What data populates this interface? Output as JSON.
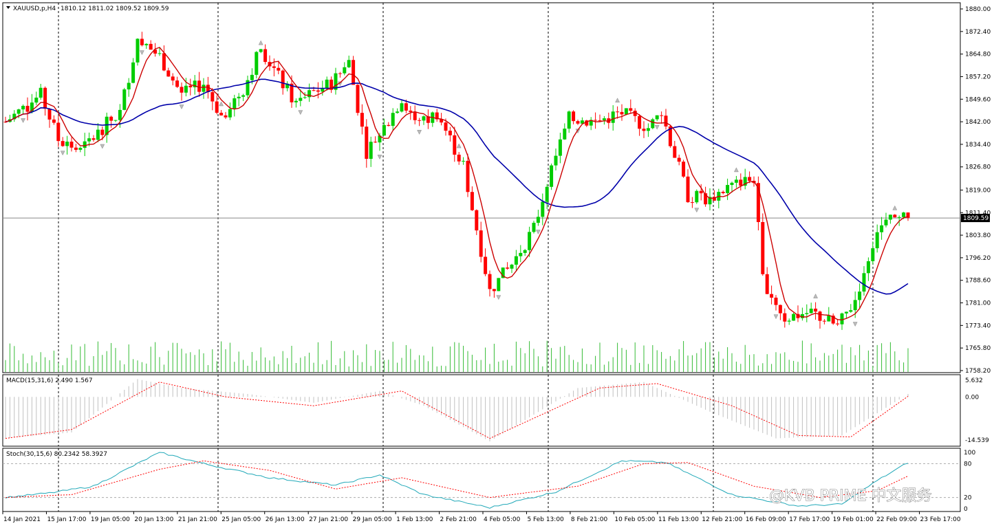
{
  "header": {
    "symbol": "XAUUSD,p,H4",
    "ohlc": "1810.12 1811.02 1809.52 1809.59"
  },
  "current_price_label": "1809.59",
  "macd_header": "MACD(15,31,6) 2.490 1.567",
  "stoch_header": "Stoch(30,15,6) 80.2342 58.3927",
  "watermark": "@KVB PRIME 中文服务",
  "colors": {
    "bull": "#00cc00",
    "bear": "#ff0000",
    "ma_fast": "#cc0000",
    "ma_slow": "#0000aa",
    "volume": "#33bb33",
    "macd_hist": "#c0c0c0",
    "macd_signal": "#ff0000",
    "stoch_main": "#20a8b8",
    "stoch_signal": "#ff0000"
  },
  "chart_data": {
    "type": "candlestick",
    "price_axis_ticks": [
      "1880.00",
      "1872.40",
      "1864.80",
      "1857.20",
      "1849.60",
      "1842.00",
      "1834.40",
      "1826.80",
      "1819.00",
      "1811.40",
      "1803.80",
      "1796.20",
      "1788.60",
      "1781.00",
      "1773.40",
      "1765.80",
      "1758.20"
    ],
    "ylim": [
      1758.2,
      1880.0
    ],
    "current_price": 1809.59,
    "x_tick_labels": [
      "14 Jan 2021",
      "15 Jan 17:00",
      "19 Jan 05:00",
      "20 Jan 13:00",
      "21 Jan 21:00",
      "25 Jan 05:00",
      "26 Jan 13:00",
      "27 Jan 21:00",
      "29 Jan 05:00",
      "1 Feb 13:00",
      "2 Feb 21:00",
      "4 Feb 05:00",
      "5 Feb 13:00",
      "8 Feb 21:00",
      "10 Feb 05:00",
      "11 Feb 13:00",
      "12 Feb 21:00",
      "16 Feb 09:00",
      "17 Feb 17:00",
      "19 Feb 01:00",
      "22 Feb 09:00",
      "23 Feb 17:00"
    ],
    "price_path": [
      [
        0,
        1842
      ],
      [
        8,
        1851
      ],
      [
        12,
        1836
      ],
      [
        17,
        1832
      ],
      [
        22,
        1840
      ],
      [
        26,
        1845
      ],
      [
        30,
        1870
      ],
      [
        35,
        1864
      ],
      [
        40,
        1851
      ],
      [
        45,
        1855
      ],
      [
        49,
        1844
      ],
      [
        54,
        1853
      ],
      [
        58,
        1867
      ],
      [
        62,
        1857
      ],
      [
        66,
        1848
      ],
      [
        70,
        1852
      ],
      [
        74,
        1855
      ],
      [
        78,
        1862
      ],
      [
        82,
        1832
      ],
      [
        86,
        1840
      ],
      [
        90,
        1850
      ],
      [
        94,
        1841
      ],
      [
        98,
        1845
      ],
      [
        104,
        1827
      ],
      [
        110,
        1785
      ],
      [
        115,
        1794
      ],
      [
        120,
        1806
      ],
      [
        124,
        1826
      ],
      [
        128,
        1843
      ],
      [
        134,
        1842
      ],
      [
        140,
        1845
      ],
      [
        146,
        1840
      ],
      [
        149,
        1845
      ],
      [
        155,
        1817
      ],
      [
        160,
        1816
      ],
      [
        164,
        1820
      ],
      [
        170,
        1823
      ],
      [
        172,
        1789
      ],
      [
        177,
        1776
      ],
      [
        183,
        1778
      ],
      [
        189,
        1773
      ],
      [
        193,
        1782
      ],
      [
        198,
        1806
      ],
      [
        202,
        1809
      ],
      [
        205,
        1809.6
      ]
    ],
    "macd_axis_ticks": [
      "5.632",
      "0.00",
      "-14.539"
    ],
    "macd_ylim": [
      -14.539,
      5.632
    ],
    "macd_hist_path": [
      [
        0,
        -14
      ],
      [
        15,
        -12
      ],
      [
        30,
        6
      ],
      [
        40,
        3
      ],
      [
        55,
        1
      ],
      [
        70,
        -2
      ],
      [
        85,
        2
      ],
      [
        95,
        -3
      ],
      [
        110,
        -15
      ],
      [
        130,
        3
      ],
      [
        145,
        5
      ],
      [
        160,
        -5
      ],
      [
        175,
        -14
      ],
      [
        190,
        -13
      ],
      [
        205,
        1
      ]
    ],
    "macd_signal_path": [
      [
        0,
        -14
      ],
      [
        15,
        -11
      ],
      [
        35,
        5
      ],
      [
        50,
        0
      ],
      [
        70,
        -3
      ],
      [
        90,
        2
      ],
      [
        110,
        -14
      ],
      [
        135,
        3
      ],
      [
        148,
        4.5
      ],
      [
        165,
        -3
      ],
      [
        180,
        -13
      ],
      [
        192,
        -13.5
      ],
      [
        205,
        0.2
      ]
    ],
    "stoch_axis_ticks": [
      "100",
      "80",
      "20",
      "0"
    ],
    "stoch_ylim": [
      0,
      100
    ],
    "stoch_main_path": [
      [
        0,
        20
      ],
      [
        10,
        28
      ],
      [
        20,
        40
      ],
      [
        35,
        100
      ],
      [
        45,
        80
      ],
      [
        60,
        55
      ],
      [
        75,
        42
      ],
      [
        85,
        60
      ],
      [
        95,
        25
      ],
      [
        110,
        2
      ],
      [
        125,
        30
      ],
      [
        140,
        85
      ],
      [
        150,
        82
      ],
      [
        165,
        25
      ],
      [
        180,
        5
      ],
      [
        190,
        8
      ],
      [
        198,
        50
      ],
      [
        205,
        82
      ]
    ],
    "stoch_signal_path": [
      [
        0,
        20
      ],
      [
        15,
        25
      ],
      [
        35,
        70
      ],
      [
        45,
        85
      ],
      [
        60,
        68
      ],
      [
        75,
        35
      ],
      [
        90,
        55
      ],
      [
        110,
        20
      ],
      [
        130,
        40
      ],
      [
        145,
        80
      ],
      [
        155,
        82
      ],
      [
        170,
        40
      ],
      [
        185,
        20
      ],
      [
        198,
        32
      ],
      [
        205,
        58
      ]
    ]
  }
}
